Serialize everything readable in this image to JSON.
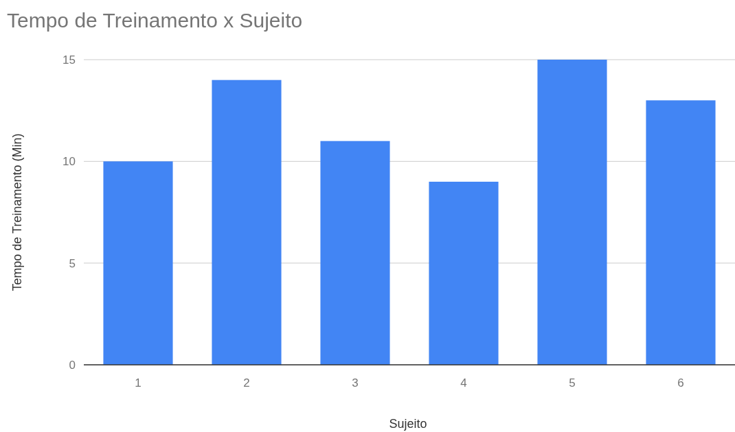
{
  "chart_data": {
    "type": "bar",
    "title": "Tempo de Treinamento x Sujeito",
    "xlabel": "Sujeito",
    "ylabel": "Tempo de Treinamento (Min)",
    "categories": [
      "1",
      "2",
      "3",
      "4",
      "5",
      "6"
    ],
    "values": [
      10,
      14,
      11,
      9,
      15,
      13
    ],
    "color": "#4285f4",
    "ylim": [
      0,
      15
    ],
    "yticks": [
      0,
      5,
      10,
      15
    ],
    "grid": "y"
  }
}
